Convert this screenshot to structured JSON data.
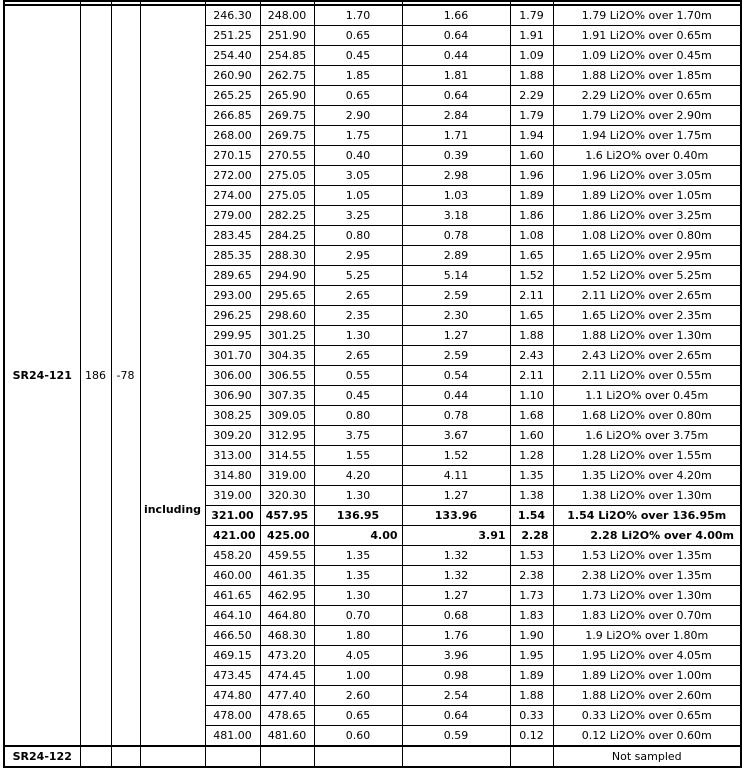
{
  "colors": {
    "text": "#000000",
    "background": "#ffffff",
    "border": "#000000"
  },
  "table": {
    "holes": [
      {
        "id": "SR24-121",
        "azimuth": "186",
        "dip": "-78",
        "rows": [
          {
            "label": "",
            "from": "246.30",
            "to": "248.00",
            "len": "1.70",
            "tw": "1.66",
            "grade": "1.79",
            "summary": "1.79 Li2O% over 1.70m",
            "style": ""
          },
          {
            "label": "",
            "from": "251.25",
            "to": "251.90",
            "len": "0.65",
            "tw": "0.64",
            "grade": "1.91",
            "summary": "1.91 Li2O% over 0.65m",
            "style": ""
          },
          {
            "label": "",
            "from": "254.40",
            "to": "254.85",
            "len": "0.45",
            "tw": "0.44",
            "grade": "1.09",
            "summary": "1.09 Li2O% over 0.45m",
            "style": ""
          },
          {
            "label": "",
            "from": "260.90",
            "to": "262.75",
            "len": "1.85",
            "tw": "1.81",
            "grade": "1.88",
            "summary": "1.88 Li2O% over 1.85m",
            "style": ""
          },
          {
            "label": "",
            "from": "265.25",
            "to": "265.90",
            "len": "0.65",
            "tw": "0.64",
            "grade": "2.29",
            "summary": "2.29 Li2O% over 0.65m",
            "style": ""
          },
          {
            "label": "",
            "from": "266.85",
            "to": "269.75",
            "len": "2.90",
            "tw": "2.84",
            "grade": "1.79",
            "summary": "1.79 Li2O% over 2.90m",
            "style": ""
          },
          {
            "label": "",
            "from": "268.00",
            "to": "269.75",
            "len": "1.75",
            "tw": "1.71",
            "grade": "1.94",
            "summary": "1.94 Li2O% over 1.75m",
            "style": ""
          },
          {
            "label": "",
            "from": "270.15",
            "to": "270.55",
            "len": "0.40",
            "tw": "0.39",
            "grade": "1.60",
            "summary": "1.6 Li2O% over 0.40m",
            "style": ""
          },
          {
            "label": "",
            "from": "272.00",
            "to": "275.05",
            "len": "3.05",
            "tw": "2.98",
            "grade": "1.96",
            "summary": "1.96 Li2O% over 3.05m",
            "style": ""
          },
          {
            "label": "",
            "from": "274.00",
            "to": "275.05",
            "len": "1.05",
            "tw": "1.03",
            "grade": "1.89",
            "summary": "1.89 Li2O% over 1.05m",
            "style": ""
          },
          {
            "label": "",
            "from": "279.00",
            "to": "282.25",
            "len": "3.25",
            "tw": "3.18",
            "grade": "1.86",
            "summary": "1.86 Li2O% over 3.25m",
            "style": ""
          },
          {
            "label": "",
            "from": "283.45",
            "to": "284.25",
            "len": "0.80",
            "tw": "0.78",
            "grade": "1.08",
            "summary": "1.08 Li2O% over 0.80m",
            "style": ""
          },
          {
            "label": "",
            "from": "285.35",
            "to": "288.30",
            "len": "2.95",
            "tw": "2.89",
            "grade": "1.65",
            "summary": "1.65 Li2O% over 2.95m",
            "style": ""
          },
          {
            "label": "",
            "from": "289.65",
            "to": "294.90",
            "len": "5.25",
            "tw": "5.14",
            "grade": "1.52",
            "summary": "1.52 Li2O% over 5.25m",
            "style": ""
          },
          {
            "label": "",
            "from": "293.00",
            "to": "295.65",
            "len": "2.65",
            "tw": "2.59",
            "grade": "2.11",
            "summary": "2.11 Li2O% over 2.65m",
            "style": ""
          },
          {
            "label": "",
            "from": "296.25",
            "to": "298.60",
            "len": "2.35",
            "tw": "2.30",
            "grade": "1.65",
            "summary": "1.65 Li2O% over 2.35m",
            "style": ""
          },
          {
            "label": "",
            "from": "299.95",
            "to": "301.25",
            "len": "1.30",
            "tw": "1.27",
            "grade": "1.88",
            "summary": "1.88 Li2O% over 1.30m",
            "style": ""
          },
          {
            "label": "",
            "from": "301.70",
            "to": "304.35",
            "len": "2.65",
            "tw": "2.59",
            "grade": "2.43",
            "summary": "2.43 Li2O% over 2.65m",
            "style": ""
          },
          {
            "label": "",
            "from": "306.00",
            "to": "306.55",
            "len": "0.55",
            "tw": "0.54",
            "grade": "2.11",
            "summary": "2.11 Li2O% over 0.55m",
            "style": ""
          },
          {
            "label": "",
            "from": "306.90",
            "to": "307.35",
            "len": "0.45",
            "tw": "0.44",
            "grade": "1.10",
            "summary": "1.1 Li2O% over 0.45m",
            "style": ""
          },
          {
            "label": "",
            "from": "308.25",
            "to": "309.05",
            "len": "0.80",
            "tw": "0.78",
            "grade": "1.68",
            "summary": "1.68 Li2O% over 0.80m",
            "style": ""
          },
          {
            "label": "",
            "from": "309.20",
            "to": "312.95",
            "len": "3.75",
            "tw": "3.67",
            "grade": "1.60",
            "summary": "1.6 Li2O% over 3.75m",
            "style": ""
          },
          {
            "label": "",
            "from": "313.00",
            "to": "314.55",
            "len": "1.55",
            "tw": "1.52",
            "grade": "1.28",
            "summary": "1.28 Li2O% over 1.55m",
            "style": ""
          },
          {
            "label": "",
            "from": "314.80",
            "to": "319.00",
            "len": "4.20",
            "tw": "4.11",
            "grade": "1.35",
            "summary": "1.35 Li2O% over 4.20m",
            "style": ""
          },
          {
            "label": "",
            "from": "319.00",
            "to": "320.30",
            "len": "1.30",
            "tw": "1.27",
            "grade": "1.38",
            "summary": "1.38 Li2O% over 1.30m",
            "style": ""
          },
          {
            "label": "",
            "from": "321.00",
            "to": "457.95",
            "len": "136.95",
            "tw": "133.96",
            "grade": "1.54",
            "summary": "1.54 Li2O% over 136.95m",
            "style": "bold"
          },
          {
            "label": "including",
            "from": "421.00",
            "to": "425.00",
            "len": "4.00",
            "tw": "3.91",
            "grade": "2.28",
            "summary": "2.28 Li2O% over 4.00m",
            "style": "bold right"
          },
          {
            "label": "",
            "from": "458.20",
            "to": "459.55",
            "len": "1.35",
            "tw": "1.32",
            "grade": "1.53",
            "summary": "1.53 Li2O% over 1.35m",
            "style": ""
          },
          {
            "label": "",
            "from": "460.00",
            "to": "461.35",
            "len": "1.35",
            "tw": "1.32",
            "grade": "2.38",
            "summary": "2.38 Li2O% over 1.35m",
            "style": ""
          },
          {
            "label": "",
            "from": "461.65",
            "to": "462.95",
            "len": "1.30",
            "tw": "1.27",
            "grade": "1.73",
            "summary": "1.73 Li2O% over 1.30m",
            "style": ""
          },
          {
            "label": "",
            "from": "464.10",
            "to": "464.80",
            "len": "0.70",
            "tw": "0.68",
            "grade": "1.83",
            "summary": "1.83 Li2O% over 0.70m",
            "style": ""
          },
          {
            "label": "",
            "from": "466.50",
            "to": "468.30",
            "len": "1.80",
            "tw": "1.76",
            "grade": "1.90",
            "summary": "1.9 Li2O% over 1.80m",
            "style": ""
          },
          {
            "label": "",
            "from": "469.15",
            "to": "473.20",
            "len": "4.05",
            "tw": "3.96",
            "grade": "1.95",
            "summary": "1.95 Li2O% over 4.05m",
            "style": ""
          },
          {
            "label": "",
            "from": "473.45",
            "to": "474.45",
            "len": "1.00",
            "tw": "0.98",
            "grade": "1.89",
            "summary": "1.89 Li2O% over 1.00m",
            "style": ""
          },
          {
            "label": "",
            "from": "474.80",
            "to": "477.40",
            "len": "2.60",
            "tw": "2.54",
            "grade": "1.88",
            "summary": "1.88 Li2O% over 2.60m",
            "style": ""
          },
          {
            "label": "",
            "from": "478.00",
            "to": "478.65",
            "len": "0.65",
            "tw": "0.64",
            "grade": "0.33",
            "summary": "0.33 Li2O% over 0.65m",
            "style": ""
          },
          {
            "label": "",
            "from": "481.00",
            "to": "481.60",
            "len": "0.60",
            "tw": "0.59",
            "grade": "0.12",
            "summary": "0.12 Li2O% over 0.60m",
            "style": ""
          }
        ]
      },
      {
        "id": "SR24-122",
        "azimuth": "",
        "dip": "",
        "rows": [
          {
            "label": "",
            "from": "",
            "to": "",
            "len": "",
            "tw": "",
            "grade": "",
            "summary": "Not sampled",
            "style": ""
          }
        ]
      }
    ]
  }
}
